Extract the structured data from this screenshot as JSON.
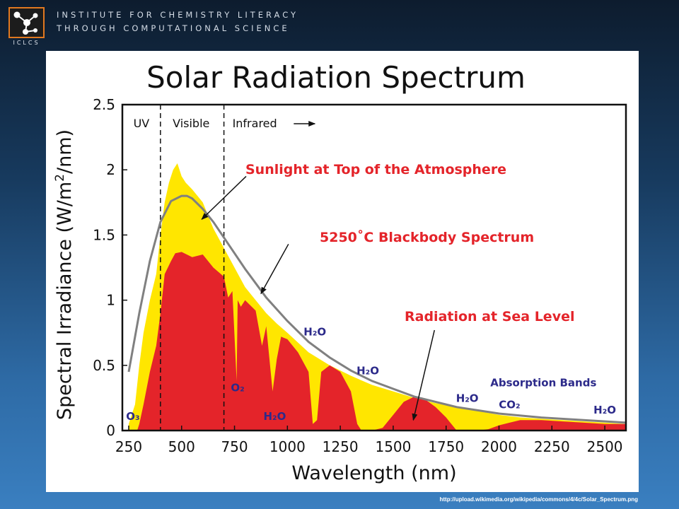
{
  "header": {
    "line1": "INSTITUTE FOR CHEMISTRY LITERACY",
    "line2": "THROUGH COMPUTATIONAL SCIENCE",
    "logo_text": "ICLCS"
  },
  "source_url": "http://upload.wikimedia.org/wikipedia/commons/4/4c/Solar_Spectrum.png",
  "colors": {
    "top_of_atmosphere": "#ffe600",
    "sea_level": "#e4242a",
    "blackbody": "#808080",
    "annotation": "#e4242a",
    "absorption_label": "#2c2a8a",
    "logo_border": "#e07820"
  },
  "chart_data": {
    "type": "area",
    "title": "Solar Radiation Spectrum",
    "xlabel": "Wavelength (nm)",
    "ylabel_parts": [
      "Spectral Irradiance (W/m",
      "2",
      "/nm)"
    ],
    "xlim": [
      220,
      2600
    ],
    "ylim": [
      0,
      2.5
    ],
    "xticks": [
      250,
      500,
      750,
      1000,
      1250,
      1500,
      1750,
      2000,
      2250,
      2500
    ],
    "yticks": [
      0,
      0.5,
      1,
      1.5,
      2,
      2.5
    ],
    "ytick_labels": [
      "0",
      "0.5",
      "1",
      "1.5",
      "2",
      "2.5"
    ],
    "grid": false,
    "region_dividers": [
      400,
      700
    ],
    "regions": {
      "uv": "UV",
      "visible": "Visible",
      "infrared": "Infrared"
    },
    "series": [
      {
        "name": "Sunlight at Top of the Atmosphere",
        "x": [
          250,
          280,
          300,
          320,
          350,
          380,
          400,
          420,
          440,
          460,
          480,
          500,
          520,
          550,
          600,
          650,
          700,
          750,
          800,
          850,
          900,
          950,
          1000,
          1100,
          1200,
          1300,
          1400,
          1500,
          1600,
          1700,
          1800,
          1900,
          2000,
          2100,
          2200,
          2300,
          2400,
          2500,
          2600
        ],
        "y": [
          0.05,
          0.2,
          0.5,
          0.75,
          1.0,
          1.2,
          1.5,
          1.75,
          1.9,
          2.0,
          2.05,
          1.95,
          1.9,
          1.85,
          1.75,
          1.55,
          1.4,
          1.25,
          1.1,
          1.0,
          0.9,
          0.82,
          0.75,
          0.6,
          0.5,
          0.42,
          0.35,
          0.3,
          0.25,
          0.21,
          0.18,
          0.15,
          0.12,
          0.1,
          0.09,
          0.08,
          0.07,
          0.06,
          0.05
        ]
      },
      {
        "name": "Radiation at Sea Level",
        "x": [
          290,
          300,
          320,
          350,
          380,
          400,
          420,
          450,
          470,
          500,
          550,
          600,
          650,
          700,
          720,
          740,
          760,
          765,
          780,
          800,
          850,
          880,
          900,
          930,
          950,
          970,
          1000,
          1050,
          1100,
          1120,
          1140,
          1160,
          1200,
          1250,
          1300,
          1330,
          1350,
          1400,
          1450,
          1500,
          1550,
          1600,
          1650,
          1700,
          1750,
          1800,
          1850,
          1900,
          1950,
          2000,
          2050,
          2100,
          2200,
          2300,
          2400,
          2500,
          2600
        ],
        "y": [
          0,
          0.05,
          0.2,
          0.45,
          0.65,
          0.9,
          1.2,
          1.3,
          1.36,
          1.37,
          1.33,
          1.35,
          1.25,
          1.18,
          1.02,
          1.07,
          0.38,
          1.0,
          0.95,
          1.0,
          0.92,
          0.65,
          0.8,
          0.3,
          0.55,
          0.72,
          0.7,
          0.6,
          0.45,
          0.05,
          0.08,
          0.45,
          0.5,
          0.45,
          0.3,
          0.05,
          0,
          0,
          0.02,
          0.12,
          0.22,
          0.26,
          0.24,
          0.18,
          0.1,
          0,
          0,
          0,
          0.01,
          0.04,
          0.06,
          0.08,
          0.08,
          0.07,
          0.06,
          0.05,
          0.05
        ]
      },
      {
        "name": "5250°C Blackbody Spectrum",
        "x": [
          250,
          300,
          350,
          400,
          450,
          500,
          525,
          550,
          600,
          650,
          700,
          750,
          800,
          900,
          1000,
          1100,
          1200,
          1300,
          1400,
          1500,
          1600,
          1800,
          2000,
          2200,
          2400,
          2600
        ],
        "y": [
          0.45,
          0.9,
          1.3,
          1.6,
          1.76,
          1.8,
          1.8,
          1.78,
          1.7,
          1.6,
          1.48,
          1.36,
          1.24,
          1.02,
          0.84,
          0.68,
          0.56,
          0.46,
          0.38,
          0.32,
          0.26,
          0.18,
          0.13,
          0.1,
          0.08,
          0.06
        ]
      }
    ],
    "annotations": {
      "sunlight_top": "Sunlight at Top of the Atmosphere",
      "blackbody": "5250˚C Blackbody Spectrum",
      "sea_level": "Radiation at Sea Level",
      "absorption_bands": "Absorption Bands"
    },
    "band_labels": [
      {
        "text": "O₃",
        "x": 270,
        "y": 0.08
      },
      {
        "text": "O₂",
        "x": 765,
        "y": 0.3
      },
      {
        "text": "H₂O",
        "x": 940,
        "y": 0.08
      },
      {
        "text": "H₂O",
        "x": 1130,
        "y": 0.73
      },
      {
        "text": "H₂O",
        "x": 1380,
        "y": 0.43
      },
      {
        "text": "H₂O",
        "x": 1850,
        "y": 0.22
      },
      {
        "text": "CO₂",
        "x": 2050,
        "y": 0.17
      },
      {
        "text": "H₂O",
        "x": 2500,
        "y": 0.13
      }
    ]
  }
}
